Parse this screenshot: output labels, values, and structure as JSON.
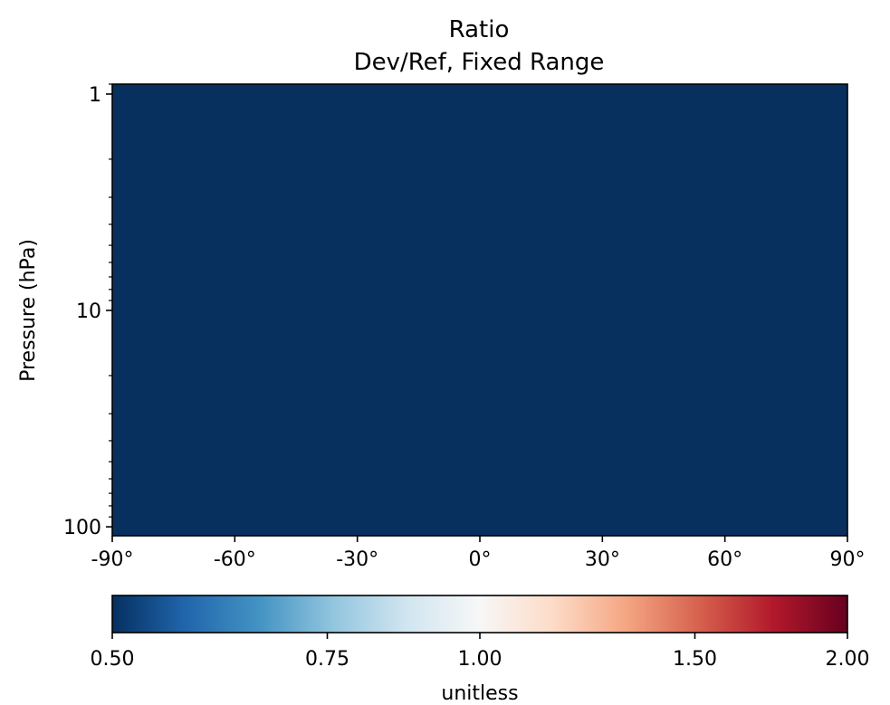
{
  "chart_data": {
    "type": "heatmap",
    "title": "Ratio",
    "subtitle": "Dev/Ref, Fixed Range",
    "ylabel": "Pressure (hPa)",
    "xlabel": "",
    "x_ticks": [
      {
        "value": -90,
        "label": "-90°"
      },
      {
        "value": -60,
        "label": "-60°"
      },
      {
        "value": -30,
        "label": "-30°"
      },
      {
        "value": 0,
        "label": "0°"
      },
      {
        "value": 30,
        "label": "30°"
      },
      {
        "value": 60,
        "label": "60°"
      },
      {
        "value": 90,
        "label": "90°"
      }
    ],
    "xlim": [
      -90,
      90
    ],
    "y_scale": "log",
    "y_inverted": true,
    "ylim": [
      110,
      0.9
    ],
    "y_ticks": [
      {
        "value": 1,
        "label": "1"
      },
      {
        "value": 10,
        "label": "10"
      },
      {
        "value": 100,
        "label": "100"
      }
    ],
    "field_value": 0.5,
    "field_color": "#08305f",
    "colorbar": {
      "colormap": "RdBu_r",
      "scale": "log",
      "range": [
        0.5,
        2.0
      ],
      "ticks": [
        {
          "value": 0.5,
          "label": "0.50"
        },
        {
          "value": 0.75,
          "label": "0.75"
        },
        {
          "value": 1.0,
          "label": "1.00"
        },
        {
          "value": 1.5,
          "label": "1.50"
        },
        {
          "value": 2.0,
          "label": "2.00"
        }
      ],
      "label": "unitless",
      "stops": [
        "#053061",
        "#2166ac",
        "#4393c3",
        "#92c5de",
        "#d1e5f0",
        "#f7f7f7",
        "#fddbc7",
        "#f4a582",
        "#d6604d",
        "#b2182b",
        "#67001f"
      ]
    }
  }
}
